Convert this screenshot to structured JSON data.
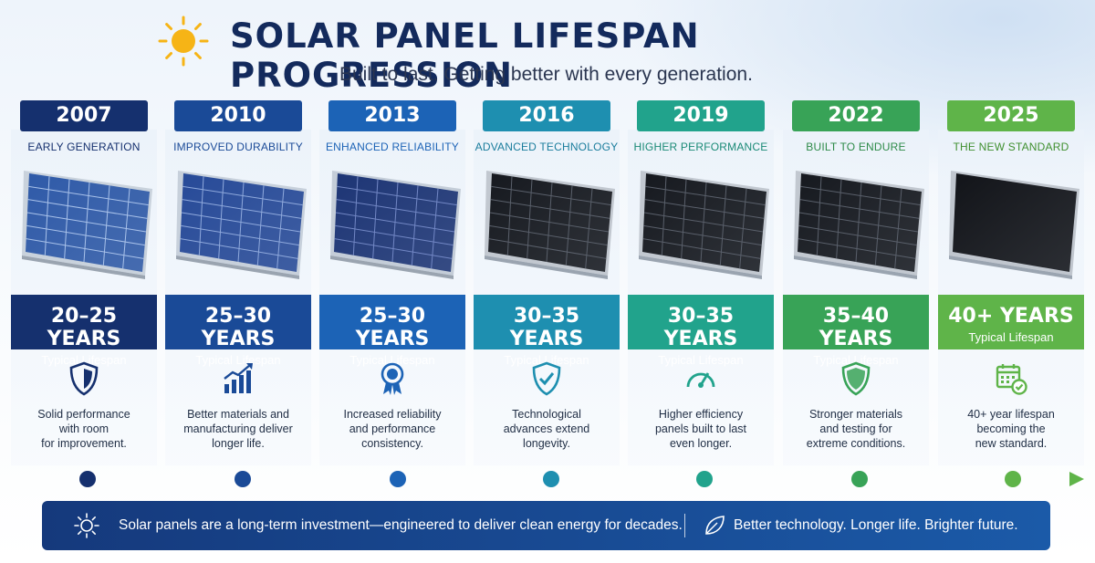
{
  "header": {
    "title": "SOLAR PANEL LIFESPAN PROGRESSION",
    "subtitle": "Built to last. Getting better with every generation."
  },
  "colors": {
    "title": "#132a5c",
    "sun": "#f6b416",
    "footer_start": "#15397c",
    "footer_end": "#1b5aa8"
  },
  "generations": [
    {
      "year": "2007",
      "label": "EARLY GENERATION",
      "lifespan": "20–25 YEARS",
      "lifespan_sub": "Typical Lifespan",
      "icon": "shield-icon",
      "description": [
        "Solid performance",
        "with room",
        "for improvement."
      ],
      "color": "#15306e",
      "label_color": "#15306e",
      "panel": "blue-light"
    },
    {
      "year": "2010",
      "label": "IMPROVED DURABILITY",
      "lifespan": "25–30 YEARS",
      "lifespan_sub": "Typical Lifespan",
      "icon": "growth-chart-icon",
      "description": [
        "Better materials and",
        "manufacturing deliver",
        "longer life."
      ],
      "color": "#1a4a97",
      "label_color": "#1a4a97",
      "panel": "blue"
    },
    {
      "year": "2013",
      "label": "ENHANCED RELIABILITY",
      "lifespan": "25–30 YEARS",
      "lifespan_sub": "Typical Lifespan",
      "icon": "award-ribbon-icon",
      "description": [
        "Increased reliability",
        "and performance",
        "consistency."
      ],
      "color": "#1c63b6",
      "label_color": "#1c63b6",
      "panel": "blue-dark"
    },
    {
      "year": "2016",
      "label": "ADVANCED TECHNOLOGY",
      "lifespan": "30–35 YEARS",
      "lifespan_sub": "Typical Lifespan",
      "icon": "shield-check-icon",
      "description": [
        "Technological",
        "advances extend",
        "longevity."
      ],
      "color": "#1e8fb0",
      "label_color": "#1a7d9c",
      "panel": "black"
    },
    {
      "year": "2019",
      "label": "HIGHER PERFORMANCE",
      "lifespan": "30–35 YEARS",
      "lifespan_sub": "Typical Lifespan",
      "icon": "gauge-icon",
      "description": [
        "Higher efficiency",
        "panels built to last",
        "even longer."
      ],
      "color": "#21a38c",
      "label_color": "#1a8a76",
      "panel": "black"
    },
    {
      "year": "2022",
      "label": "BUILT TO ENDURE",
      "lifespan": "35–40 YEARS",
      "lifespan_sub": "Typical Lifespan",
      "icon": "shield-plain-icon",
      "description": [
        "Stronger materials",
        "and testing for",
        "extreme conditions."
      ],
      "color": "#38a357",
      "label_color": "#2d8a48",
      "panel": "black"
    },
    {
      "year": "2025",
      "label": "THE NEW STANDARD",
      "lifespan": "40+ YEARS",
      "lifespan_sub": "Typical Lifespan",
      "icon": "calendar-check-icon",
      "description": [
        "40+ year lifespan",
        "becoming the",
        "new standard."
      ],
      "color": "#5fb449",
      "label_color": "#3f8f2f",
      "panel": "black-full"
    }
  ],
  "footer": {
    "message": "Solar panels are a long-term investment—engineered to deliver clean energy for decades.",
    "tagline": "Better technology. Longer life. Brighter future.",
    "left_icon": "sun-outline-icon",
    "right_icon": "leaf-icon"
  }
}
